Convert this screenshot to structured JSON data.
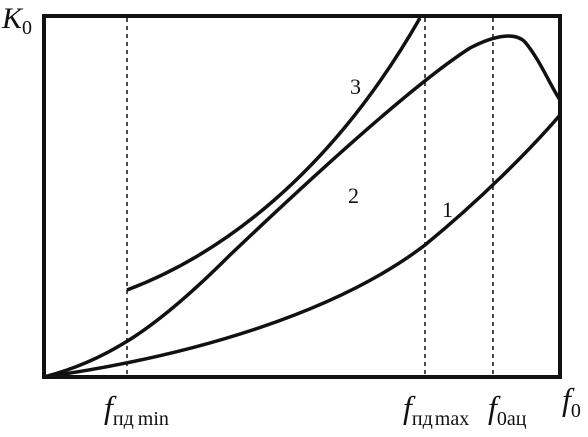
{
  "diagram": {
    "y_axis": {
      "symbol": "K",
      "subscript": "0"
    },
    "x_axis": {
      "symbol": "f",
      "subscript": "0"
    },
    "verticals": [
      {
        "symbol": "f",
        "subscript_main": "пд",
        "subscript_tail": "min"
      },
      {
        "symbol": "f",
        "subscript_main": "пд",
        "subscript_tail": "max"
      },
      {
        "symbol": "f",
        "subscript_main": "0ац",
        "subscript_tail": ""
      }
    ],
    "curves": [
      {
        "label": "1"
      },
      {
        "label": "2"
      },
      {
        "label": "3"
      }
    ]
  }
}
